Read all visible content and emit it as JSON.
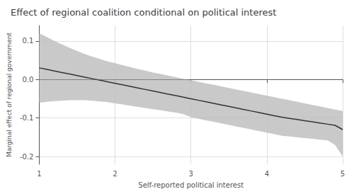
{
  "chart_data": {
    "type": "line",
    "title": "Effect of regional coalition conditional on political interest",
    "xlabel": "Self-reported political interest",
    "ylabel": "Marginal effect of regional government",
    "x": [
      1.0,
      1.1,
      1.2,
      1.3,
      1.4,
      1.5,
      1.6,
      1.7,
      1.8,
      1.9,
      2.0,
      2.1,
      2.2,
      2.3,
      2.4,
      2.5,
      2.6,
      2.7,
      2.8,
      2.9,
      3.0,
      3.1,
      3.2,
      3.3,
      3.4,
      3.5,
      3.6,
      3.7,
      3.8,
      3.9,
      4.0,
      4.1,
      4.2,
      4.3,
      4.4,
      4.5,
      4.6,
      4.7,
      4.8,
      4.9,
      5.0
    ],
    "values": [
      0.03,
      0.026,
      0.022,
      0.018,
      0.014,
      0.01,
      0.006,
      0.002,
      -0.002,
      -0.006,
      -0.01,
      -0.014,
      -0.018,
      -0.022,
      -0.026,
      -0.03,
      -0.034,
      -0.038,
      -0.042,
      -0.046,
      -0.05,
      -0.054,
      -0.058,
      -0.062,
      -0.066,
      -0.07,
      -0.074,
      -0.078,
      -0.082,
      -0.086,
      -0.09,
      -0.094,
      -0.098,
      -0.101,
      -0.104,
      -0.107,
      -0.11,
      -0.113,
      -0.116,
      -0.119,
      -0.13
    ],
    "color": "#333333",
    "ci": {
      "upper": [
        0.12,
        0.11,
        0.1,
        0.091,
        0.082,
        0.074,
        0.066,
        0.059,
        0.053,
        0.047,
        0.042,
        0.037,
        0.032,
        0.027,
        0.023,
        0.018,
        0.014,
        0.01,
        0.006,
        0.002,
        -0.002,
        -0.006,
        -0.01,
        -0.014,
        -0.018,
        -0.022,
        -0.026,
        -0.03,
        -0.034,
        -0.038,
        -0.042,
        -0.046,
        -0.05,
        -0.054,
        -0.058,
        -0.062,
        -0.066,
        -0.07,
        -0.074,
        -0.078,
        -0.082
      ],
      "lower": [
        -0.06,
        -0.058,
        -0.056,
        -0.055,
        -0.054,
        -0.054,
        -0.054,
        -0.055,
        -0.057,
        -0.059,
        -0.062,
        -0.065,
        -0.068,
        -0.071,
        -0.074,
        -0.077,
        -0.08,
        -0.083,
        -0.086,
        -0.09,
        -0.098,
        -0.102,
        -0.106,
        -0.11,
        -0.114,
        -0.118,
        -0.122,
        -0.126,
        -0.13,
        -0.134,
        -0.138,
        -0.142,
        -0.146,
        -0.148,
        -0.15,
        -0.152,
        -0.154,
        -0.156,
        -0.158,
        -0.17,
        -0.2
      ],
      "color": "#c0c0c0"
    },
    "hline": {
      "value": 0.0,
      "color": "#555555",
      "line_style": "dotted"
    },
    "xlim": [
      1,
      5
    ],
    "ylim": [
      -0.22,
      0.14
    ],
    "xticks": [
      1,
      2,
      3,
      4,
      5
    ],
    "yticks": [
      -0.2,
      -0.1,
      {
        "value": 0.0,
        "label": "0.0"
      },
      0.1
    ],
    "grid": true
  }
}
